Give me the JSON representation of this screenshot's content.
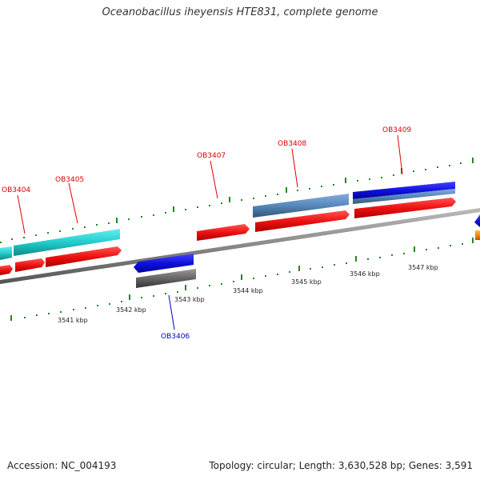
{
  "title": "Oceanobacillus iheyensis HTE831, complete genome",
  "footer": {
    "accession": "Accession: NC_004193",
    "summary": "Topology: circular; Length: 3,630,528 bp; Genes: 3,591"
  },
  "scale_labels": [
    "3541 kbp",
    "3542 kbp",
    "3543 kbp",
    "3544 kbp",
    "3545 kbp",
    "3546 kbp",
    "3547 kbp"
  ],
  "gene_labels": [
    {
      "id": "OB3404",
      "color": "#dd0000"
    },
    {
      "id": "OB3405",
      "color": "#dd0000"
    },
    {
      "id": "OB3406",
      "color": "#0000cc"
    },
    {
      "id": "OB3407",
      "color": "#dd0000"
    },
    {
      "id": "OB3408",
      "color": "#dd0000"
    },
    {
      "id": "OB3409",
      "color": "#dd0000"
    }
  ],
  "colors": {
    "gene_red": "#ee1111",
    "gene_blue": "#1111dd",
    "gene_cyan": "#22cccc",
    "gene_steelblue": "#5588bb",
    "gene_gray": "#666666",
    "gene_orange": "#ff8800",
    "backbone": "#888888",
    "tick": "#228822"
  }
}
